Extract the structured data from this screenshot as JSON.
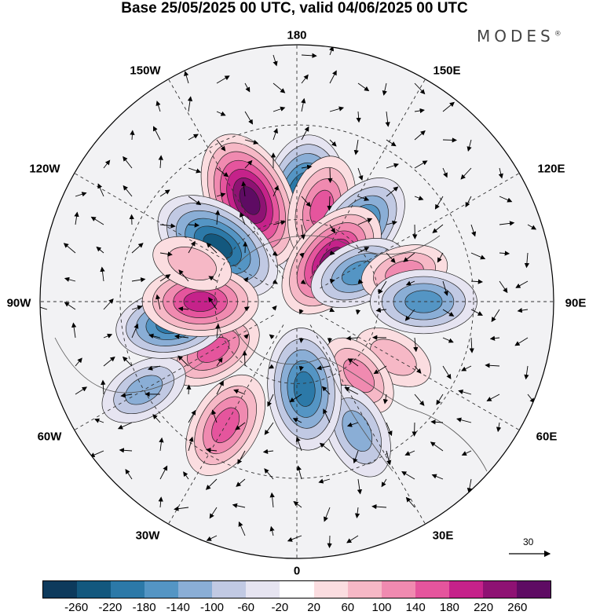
{
  "title": "Base 25/05/2025 00 UTC, valid 04/06/2025 00 UTC",
  "brand": "MODES",
  "brand_mark": "®",
  "longitude_labels": [
    "180",
    "150E",
    "120E",
    "90E",
    "60E",
    "30E",
    "0",
    "30W",
    "60W",
    "90W",
    "120W",
    "150W"
  ],
  "reference_vector_label": "30",
  "colorbar": {
    "colors": [
      "#0d3a5c",
      "#13587e",
      "#2c79a8",
      "#5495c4",
      "#8aaed6",
      "#c1c9e3",
      "#e6e4f1",
      "#ffffff",
      "#fbdde0",
      "#f6b8c6",
      "#f08ab0",
      "#e5559d",
      "#c5228a",
      "#8e1273",
      "#5e0b63"
    ],
    "tick_labels": [
      "-260",
      "-220",
      "-180",
      "-140",
      "-100",
      "-60",
      "-20",
      "20",
      "60",
      "100",
      "140",
      "180",
      "220",
      "260"
    ]
  },
  "anomaly_centers": [
    {
      "lon": 175,
      "lat": 55,
      "value": -250
    },
    {
      "lon": -155,
      "lat": 50,
      "value": 250
    },
    {
      "lon": -125,
      "lat": 55,
      "value": -230
    },
    {
      "lon": 165,
      "lat": 55,
      "value": 140
    },
    {
      "lon": 140,
      "lat": 55,
      "value": -170
    },
    {
      "lon": 140,
      "lat": 70,
      "value": 200
    },
    {
      "lon": 115,
      "lat": 65,
      "value": -120
    },
    {
      "lon": 105,
      "lat": 50,
      "value": 80
    },
    {
      "lon": 90,
      "lat": 45,
      "value": -140
    },
    {
      "lon": 60,
      "lat": 50,
      "value": 60
    },
    {
      "lon": 40,
      "lat": 55,
      "value": 80
    },
    {
      "lon": 25,
      "lat": 40,
      "value": -110
    },
    {
      "lon": 5,
      "lat": 58,
      "value": -190
    },
    {
      "lon": -30,
      "lat": 40,
      "value": 150
    },
    {
      "lon": -60,
      "lat": 55,
      "value": 120
    },
    {
      "lon": -60,
      "lat": 30,
      "value": -90
    },
    {
      "lon": -80,
      "lat": 45,
      "value": -160
    },
    {
      "lon": -90,
      "lat": 55,
      "value": 170
    },
    {
      "lon": -110,
      "lat": 50,
      "value": 60
    }
  ]
}
